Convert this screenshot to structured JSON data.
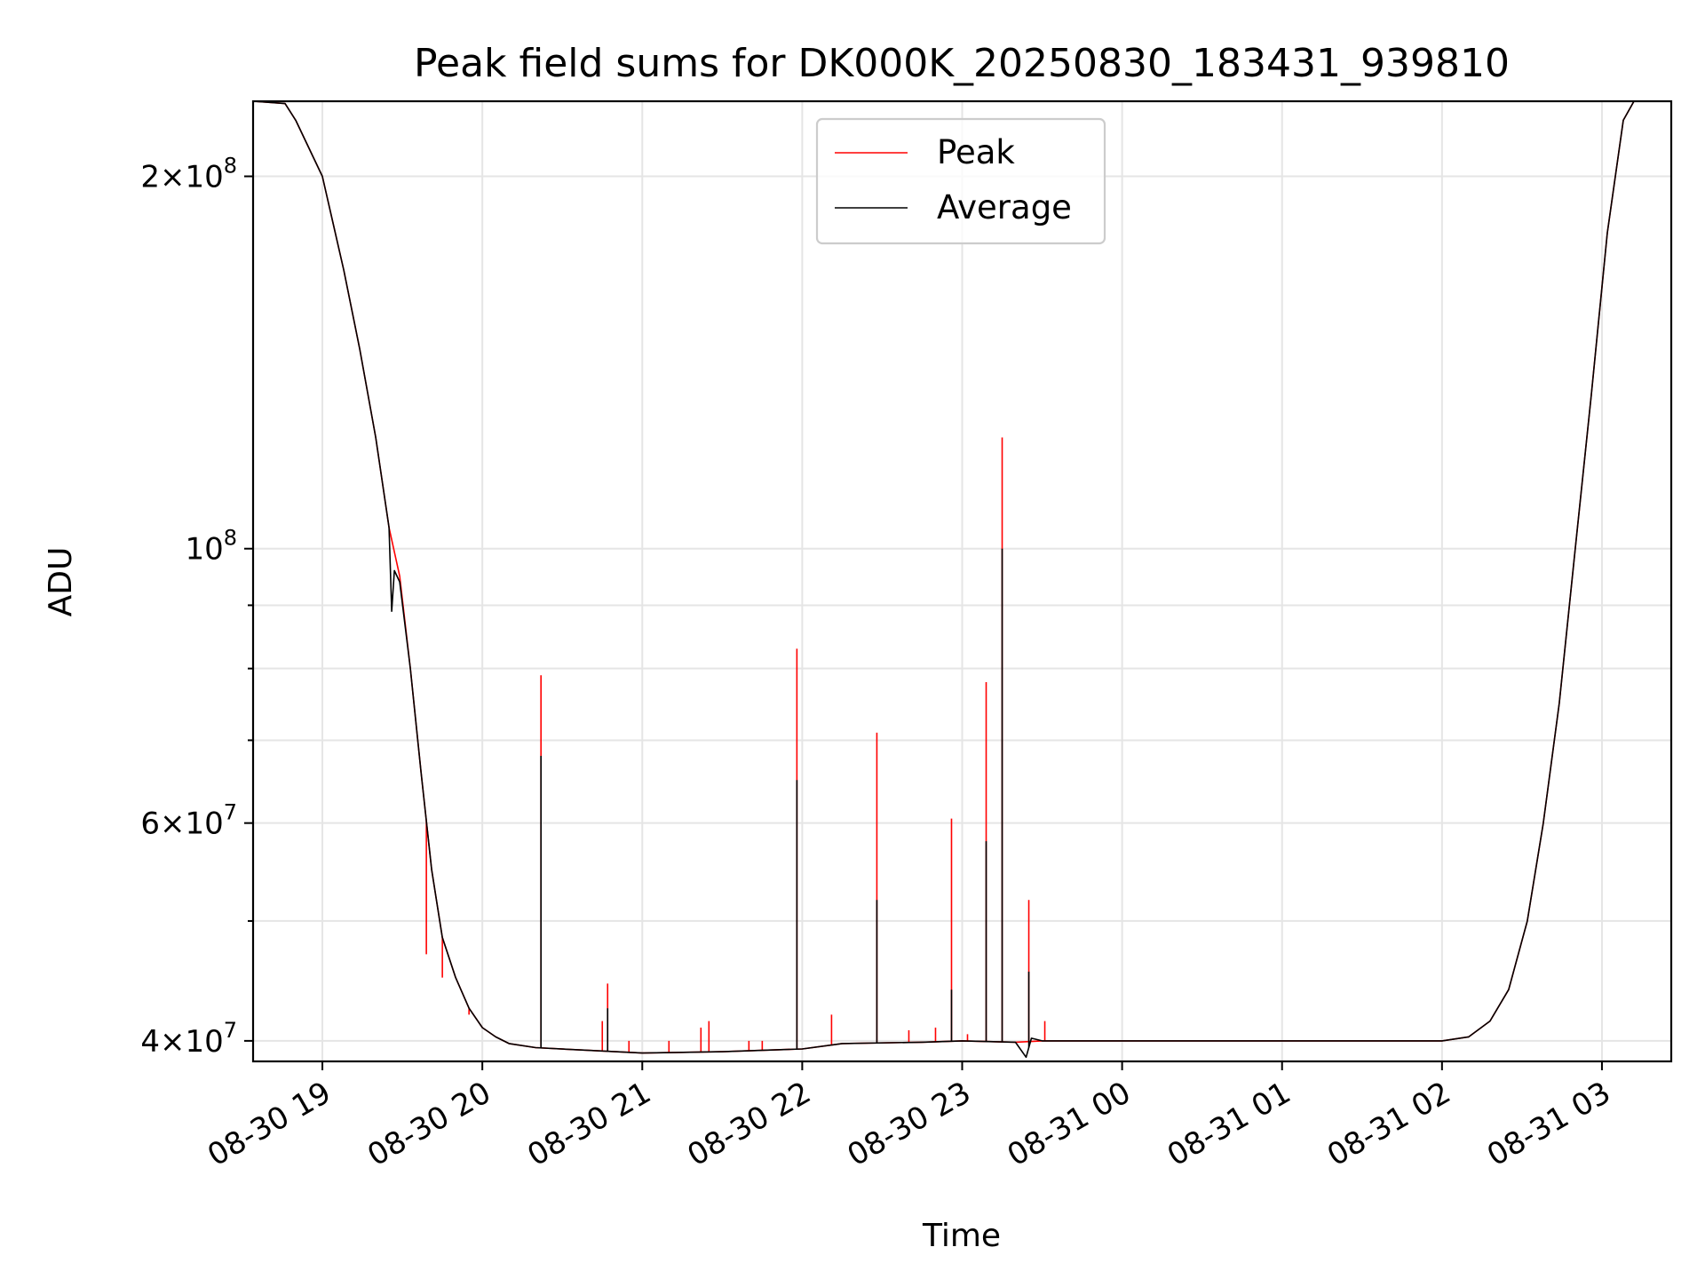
{
  "chart_data": {
    "type": "line",
    "title": "Peak field sums for DK000K_20250830_183431_939810",
    "xlabel": "Time",
    "ylabel": "ADU",
    "yscale": "log",
    "xlim": [
      "2025-08-30 18:34",
      "2025-08-31 03:26"
    ],
    "ylim": [
      38500000,
      230000000
    ],
    "grid": true,
    "legend_position": "upper center",
    "x_ticks": [
      {
        "label": "08-30 19",
        "t": "2025-08-30 19:00"
      },
      {
        "label": "08-30 20",
        "t": "2025-08-30 20:00"
      },
      {
        "label": "08-30 21",
        "t": "2025-08-30 21:00"
      },
      {
        "label": "08-30 22",
        "t": "2025-08-30 22:00"
      },
      {
        "label": "08-30 23",
        "t": "2025-08-30 23:00"
      },
      {
        "label": "08-31 00",
        "t": "2025-08-31 00:00"
      },
      {
        "label": "08-31 01",
        "t": "2025-08-31 01:00"
      },
      {
        "label": "08-31 02",
        "t": "2025-08-31 02:00"
      },
      {
        "label": "08-31 03",
        "t": "2025-08-31 03:00"
      }
    ],
    "y_ticks_major": [
      {
        "value": 40000000,
        "base": "4",
        "exp": "7"
      },
      {
        "value": 60000000,
        "base": "6",
        "exp": "7"
      },
      {
        "value": 100000000,
        "base": "",
        "exp": "8"
      },
      {
        "value": 200000000,
        "base": "2",
        "exp": "8"
      }
    ],
    "y_ticks_minor": [
      50000000,
      70000000,
      80000000,
      90000000
    ],
    "series": [
      {
        "name": "Peak",
        "color": "#ff0000",
        "baseline": [
          [
            "2025-08-30 18:34",
            230000000
          ],
          [
            "2025-08-30 18:46",
            229000000
          ],
          [
            "2025-08-30 18:50",
            222000000
          ],
          [
            "2025-08-30 19:00",
            200000000
          ],
          [
            "2025-08-30 19:08",
            168000000
          ],
          [
            "2025-08-30 19:14",
            145000000
          ],
          [
            "2025-08-30 19:20",
            123000000
          ],
          [
            "2025-08-30 19:25",
            104000000
          ],
          [
            "2025-08-30 19:29",
            95000000
          ],
          [
            "2025-08-30 19:33",
            80000000
          ],
          [
            "2025-08-30 19:37",
            66000000
          ],
          [
            "2025-08-30 19:41",
            55000000
          ],
          [
            "2025-08-30 19:45",
            48500000
          ],
          [
            "2025-08-30 19:50",
            45000000
          ],
          [
            "2025-08-30 19:55",
            42500000
          ],
          [
            "2025-08-30 20:00",
            41000000
          ],
          [
            "2025-08-30 20:05",
            40300000
          ],
          [
            "2025-08-30 20:10",
            39800000
          ],
          [
            "2025-08-30 20:20",
            39500000
          ],
          [
            "2025-08-30 20:40",
            39300000
          ],
          [
            "2025-08-30 21:00",
            39100000
          ],
          [
            "2025-08-30 21:30",
            39200000
          ],
          [
            "2025-08-30 22:00",
            39400000
          ],
          [
            "2025-08-30 22:15",
            39800000
          ],
          [
            "2025-08-30 22:45",
            39900000
          ],
          [
            "2025-08-30 23:00",
            40000000
          ],
          [
            "2025-08-30 23:20",
            39900000
          ],
          [
            "2025-08-30 23:30",
            40000000
          ],
          [
            "2025-08-31 00:00",
            40000000
          ],
          [
            "2025-08-31 01:00",
            40000000
          ],
          [
            "2025-08-31 02:00",
            40000000
          ],
          [
            "2025-08-31 02:10",
            40300000
          ],
          [
            "2025-08-31 02:18",
            41500000
          ],
          [
            "2025-08-31 02:25",
            44000000
          ],
          [
            "2025-08-31 02:32",
            50000000
          ],
          [
            "2025-08-31 02:38",
            60000000
          ],
          [
            "2025-08-31 02:44",
            75000000
          ],
          [
            "2025-08-31 02:50",
            100000000
          ],
          [
            "2025-08-31 02:56",
            133000000
          ],
          [
            "2025-08-31 03:02",
            180000000
          ],
          [
            "2025-08-31 03:08",
            222000000
          ],
          [
            "2025-08-31 03:12",
            230000000
          ],
          [
            "2025-08-31 03:26",
            230000000
          ]
        ],
        "spikes": [
          [
            "2025-08-30 19:39",
            47000000
          ],
          [
            "2025-08-30 19:45",
            45000000
          ],
          [
            "2025-08-30 19:55",
            42000000
          ],
          [
            "2025-08-30 20:22",
            79000000
          ],
          [
            "2025-08-30 20:45",
            41500000
          ],
          [
            "2025-08-30 20:47",
            44500000
          ],
          [
            "2025-08-30 20:55",
            40000000
          ],
          [
            "2025-08-30 21:10",
            40000000
          ],
          [
            "2025-08-30 21:22",
            41000000
          ],
          [
            "2025-08-30 21:25",
            41500000
          ],
          [
            "2025-08-30 21:40",
            40000000
          ],
          [
            "2025-08-30 21:45",
            40000000
          ],
          [
            "2025-08-30 21:58",
            83000000
          ],
          [
            "2025-08-30 22:11",
            42000000
          ],
          [
            "2025-08-30 22:28",
            71000000
          ],
          [
            "2025-08-30 22:40",
            40800000
          ],
          [
            "2025-08-30 22:50",
            41000000
          ],
          [
            "2025-08-30 22:56",
            60500000
          ],
          [
            "2025-08-30 23:02",
            40500000
          ],
          [
            "2025-08-30 23:09",
            78000000
          ],
          [
            "2025-08-30 23:15",
            123000000
          ],
          [
            "2025-08-30 23:25",
            52000000
          ],
          [
            "2025-08-30 23:31",
            41500000
          ]
        ]
      },
      {
        "name": "Average",
        "color": "#000000",
        "baseline": [
          [
            "2025-08-30 18:34",
            230000000
          ],
          [
            "2025-08-30 18:46",
            229000000
          ],
          [
            "2025-08-30 18:50",
            222000000
          ],
          [
            "2025-08-30 19:00",
            200000000
          ],
          [
            "2025-08-30 19:08",
            168000000
          ],
          [
            "2025-08-30 19:14",
            145000000
          ],
          [
            "2025-08-30 19:20",
            123000000
          ],
          [
            "2025-08-30 19:25",
            104000000
          ],
          [
            "2025-08-30 19:26",
            89000000
          ],
          [
            "2025-08-30 19:27",
            96000000
          ],
          [
            "2025-08-30 19:29",
            94000000
          ],
          [
            "2025-08-30 19:33",
            80000000
          ],
          [
            "2025-08-30 19:37",
            66000000
          ],
          [
            "2025-08-30 19:41",
            55000000
          ],
          [
            "2025-08-30 19:45",
            48500000
          ],
          [
            "2025-08-30 19:50",
            45000000
          ],
          [
            "2025-08-30 19:55",
            42500000
          ],
          [
            "2025-08-30 20:00",
            41000000
          ],
          [
            "2025-08-30 20:05",
            40300000
          ],
          [
            "2025-08-30 20:10",
            39800000
          ],
          [
            "2025-08-30 20:20",
            39500000
          ],
          [
            "2025-08-30 20:40",
            39300000
          ],
          [
            "2025-08-30 21:00",
            39100000
          ],
          [
            "2025-08-30 21:30",
            39200000
          ],
          [
            "2025-08-30 22:00",
            39400000
          ],
          [
            "2025-08-30 22:15",
            39800000
          ],
          [
            "2025-08-30 22:45",
            39900000
          ],
          [
            "2025-08-30 23:00",
            40000000
          ],
          [
            "2025-08-30 23:20",
            39900000
          ],
          [
            "2025-08-30 23:24",
            38800000
          ],
          [
            "2025-08-30 23:26",
            40200000
          ],
          [
            "2025-08-30 23:30",
            40000000
          ],
          [
            "2025-08-31 00:00",
            40000000
          ],
          [
            "2025-08-31 01:00",
            40000000
          ],
          [
            "2025-08-31 02:00",
            40000000
          ],
          [
            "2025-08-31 02:10",
            40300000
          ],
          [
            "2025-08-31 02:18",
            41500000
          ],
          [
            "2025-08-31 02:25",
            44000000
          ],
          [
            "2025-08-31 02:32",
            50000000
          ],
          [
            "2025-08-31 02:38",
            60000000
          ],
          [
            "2025-08-31 02:44",
            75000000
          ],
          [
            "2025-08-31 02:50",
            100000000
          ],
          [
            "2025-08-31 02:56",
            133000000
          ],
          [
            "2025-08-31 03:02",
            180000000
          ],
          [
            "2025-08-31 03:08",
            222000000
          ],
          [
            "2025-08-31 03:12",
            230000000
          ],
          [
            "2025-08-31 03:26",
            230000000
          ]
        ],
        "spikes": [
          [
            "2025-08-30 20:22",
            68000000
          ],
          [
            "2025-08-30 20:47",
            42500000
          ],
          [
            "2025-08-30 21:58",
            65000000
          ],
          [
            "2025-08-30 22:28",
            52000000
          ],
          [
            "2025-08-30 22:56",
            44000000
          ],
          [
            "2025-08-30 23:09",
            58000000
          ],
          [
            "2025-08-30 23:15",
            100000000
          ],
          [
            "2025-08-30 23:25",
            45500000
          ]
        ]
      }
    ]
  }
}
